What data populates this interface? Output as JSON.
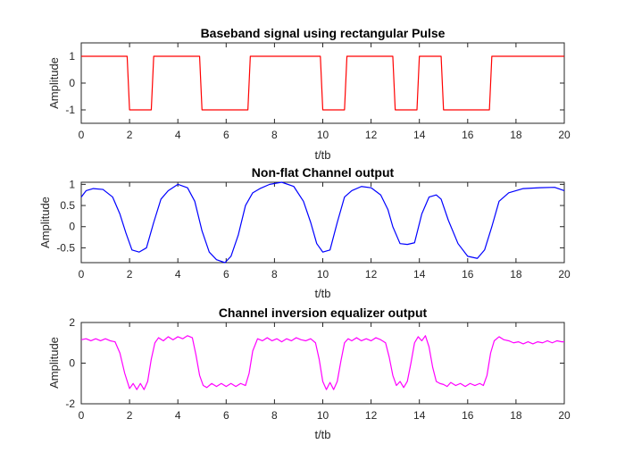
{
  "chart_data": [
    {
      "type": "line",
      "title": "Baseband signal using rectangular Pulse",
      "xlabel": "t/tb",
      "ylabel": "Amplitude",
      "xlim": [
        0,
        20
      ],
      "ylim": [
        -1.5,
        1.5
      ],
      "xticks": [
        0,
        2,
        4,
        6,
        8,
        10,
        12,
        14,
        16,
        18,
        20
      ],
      "yticks": [
        1,
        0,
        -1
      ],
      "grid": false,
      "series": [
        {
          "color": "#ff0000",
          "x": [
            0,
            1.9,
            2.0,
            2.9,
            3.0,
            4.9,
            5.0,
            6.9,
            7.0,
            9.9,
            10.0,
            10.9,
            11.0,
            12.9,
            13.0,
            13.9,
            14.0,
            14.9,
            15.0,
            16.9,
            17.0,
            20
          ],
          "y": [
            1,
            1,
            -1,
            -1,
            1,
            1,
            -1,
            -1,
            1,
            1,
            -1,
            -1,
            1,
            1,
            -1,
            -1,
            1,
            1,
            -1,
            -1,
            1,
            1
          ]
        }
      ]
    },
    {
      "type": "line",
      "title": "Non-flat Channel output",
      "xlabel": "t/tb",
      "ylabel": "Amplitude",
      "xlim": [
        0,
        20
      ],
      "ylim": [
        -0.85,
        1.05
      ],
      "xticks": [
        0,
        2,
        4,
        6,
        8,
        10,
        12,
        14,
        16,
        18,
        20
      ],
      "yticks": [
        1,
        0.5,
        0,
        -0.5
      ],
      "grid": false,
      "series": [
        {
          "color": "#0000ff",
          "x": [
            0,
            0.2,
            0.5,
            0.9,
            1.3,
            1.6,
            1.85,
            2.1,
            2.4,
            2.7,
            3.0,
            3.3,
            3.6,
            4.0,
            4.4,
            4.7,
            5.0,
            5.3,
            5.6,
            5.95,
            6.2,
            6.5,
            6.8,
            7.1,
            7.4,
            7.8,
            8.3,
            8.8,
            9.2,
            9.5,
            9.75,
            10.0,
            10.3,
            10.6,
            10.9,
            11.2,
            11.6,
            12.0,
            12.4,
            12.7,
            12.9,
            13.2,
            13.5,
            13.8,
            14.1,
            14.4,
            14.7,
            14.9,
            15.2,
            15.6,
            16.0,
            16.4,
            16.7,
            17.0,
            17.3,
            17.7,
            18.3,
            19.0,
            19.6,
            20.0
          ],
          "y": [
            0.7,
            0.85,
            0.9,
            0.88,
            0.7,
            0.3,
            -0.15,
            -0.55,
            -0.6,
            -0.5,
            0.1,
            0.65,
            0.85,
            1.0,
            0.92,
            0.6,
            -0.1,
            -0.6,
            -0.78,
            -0.85,
            -0.7,
            -0.2,
            0.5,
            0.8,
            0.9,
            1.0,
            1.05,
            0.95,
            0.6,
            0.1,
            -0.4,
            -0.6,
            -0.55,
            0.1,
            0.7,
            0.85,
            0.95,
            0.92,
            0.75,
            0.4,
            0.0,
            -0.4,
            -0.42,
            -0.38,
            0.3,
            0.7,
            0.75,
            0.65,
            0.15,
            -0.4,
            -0.7,
            -0.75,
            -0.55,
            0.0,
            0.6,
            0.8,
            0.9,
            0.92,
            0.93,
            0.85
          ]
        }
      ]
    },
    {
      "type": "line",
      "title": "Channel inversion equalizer output",
      "xlabel": "t/tb",
      "ylabel": "Amplitude",
      "xlim": [
        0,
        20
      ],
      "ylim": [
        -2,
        2
      ],
      "xticks": [
        0,
        2,
        4,
        6,
        8,
        10,
        12,
        14,
        16,
        18,
        20
      ],
      "yticks": [
        2,
        0,
        -2
      ],
      "grid": false,
      "series": [
        {
          "color": "#ff00ff",
          "x": [
            0,
            0.2,
            0.4,
            0.6,
            0.8,
            1.0,
            1.2,
            1.4,
            1.6,
            1.8,
            2.0,
            2.15,
            2.3,
            2.45,
            2.6,
            2.75,
            2.9,
            3.05,
            3.2,
            3.4,
            3.6,
            3.8,
            4.0,
            4.2,
            4.4,
            4.6,
            4.75,
            4.9,
            5.05,
            5.2,
            5.4,
            5.6,
            5.8,
            6.0,
            6.2,
            6.4,
            6.6,
            6.8,
            6.95,
            7.1,
            7.3,
            7.5,
            7.7,
            7.9,
            8.1,
            8.3,
            8.5,
            8.7,
            8.9,
            9.1,
            9.3,
            9.5,
            9.7,
            9.85,
            10.0,
            10.15,
            10.3,
            10.45,
            10.6,
            10.75,
            10.9,
            11.05,
            11.2,
            11.4,
            11.6,
            11.8,
            12.0,
            12.2,
            12.4,
            12.6,
            12.75,
            12.9,
            13.05,
            13.2,
            13.35,
            13.5,
            13.65,
            13.8,
            13.95,
            14.1,
            14.25,
            14.4,
            14.55,
            14.7,
            14.85,
            15.0,
            15.15,
            15.3,
            15.5,
            15.7,
            15.9,
            16.1,
            16.3,
            16.5,
            16.65,
            16.8,
            16.95,
            17.1,
            17.3,
            17.5,
            17.7,
            17.9,
            18.1,
            18.3,
            18.5,
            18.7,
            18.9,
            19.1,
            19.3,
            19.5,
            19.7,
            19.9,
            20.0
          ],
          "y": [
            1.15,
            1.2,
            1.1,
            1.2,
            1.1,
            1.2,
            1.1,
            1.05,
            0.5,
            -0.5,
            -1.25,
            -1.0,
            -1.3,
            -1.0,
            -1.3,
            -0.9,
            0.2,
            1.0,
            1.25,
            1.1,
            1.3,
            1.15,
            1.3,
            1.2,
            1.35,
            1.25,
            0.4,
            -0.6,
            -1.1,
            -1.2,
            -1.0,
            -1.15,
            -1.0,
            -1.15,
            -1.0,
            -1.15,
            -1.0,
            -1.1,
            -0.5,
            0.6,
            1.2,
            1.1,
            1.25,
            1.1,
            1.2,
            1.05,
            1.2,
            1.1,
            1.25,
            1.15,
            1.1,
            1.2,
            1.0,
            0.2,
            -0.9,
            -1.3,
            -0.95,
            -1.3,
            -0.9,
            0.1,
            1.0,
            1.2,
            1.1,
            1.25,
            1.1,
            1.2,
            1.1,
            1.25,
            1.15,
            1.0,
            0.3,
            -0.6,
            -1.1,
            -0.9,
            -1.2,
            -0.9,
            0.0,
            1.0,
            1.3,
            1.1,
            1.35,
            0.8,
            -0.2,
            -0.9,
            -1.0,
            -1.05,
            -1.15,
            -0.95,
            -1.1,
            -1.0,
            -1.15,
            -1.0,
            -1.1,
            -1.0,
            -1.1,
            -0.6,
            0.5,
            1.1,
            1.3,
            1.15,
            1.1,
            1.0,
            1.05,
            0.95,
            1.05,
            0.95,
            1.05,
            1.0,
            1.1,
            1.0,
            1.1,
            1.05,
            1.05
          ]
        }
      ]
    }
  ]
}
